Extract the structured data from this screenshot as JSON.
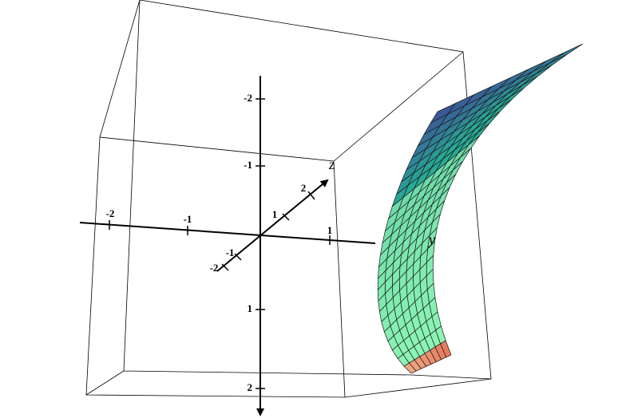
{
  "axes": [
    {
      "label": "y",
      "ticks": [
        "-2",
        "-1",
        "1"
      ]
    },
    {
      "label": "z",
      "ticks": [
        "2",
        "1",
        "-1",
        "-2"
      ]
    },
    {
      "ticks": [
        "-2",
        "-1",
        "1",
        "2"
      ]
    }
  ]
}
